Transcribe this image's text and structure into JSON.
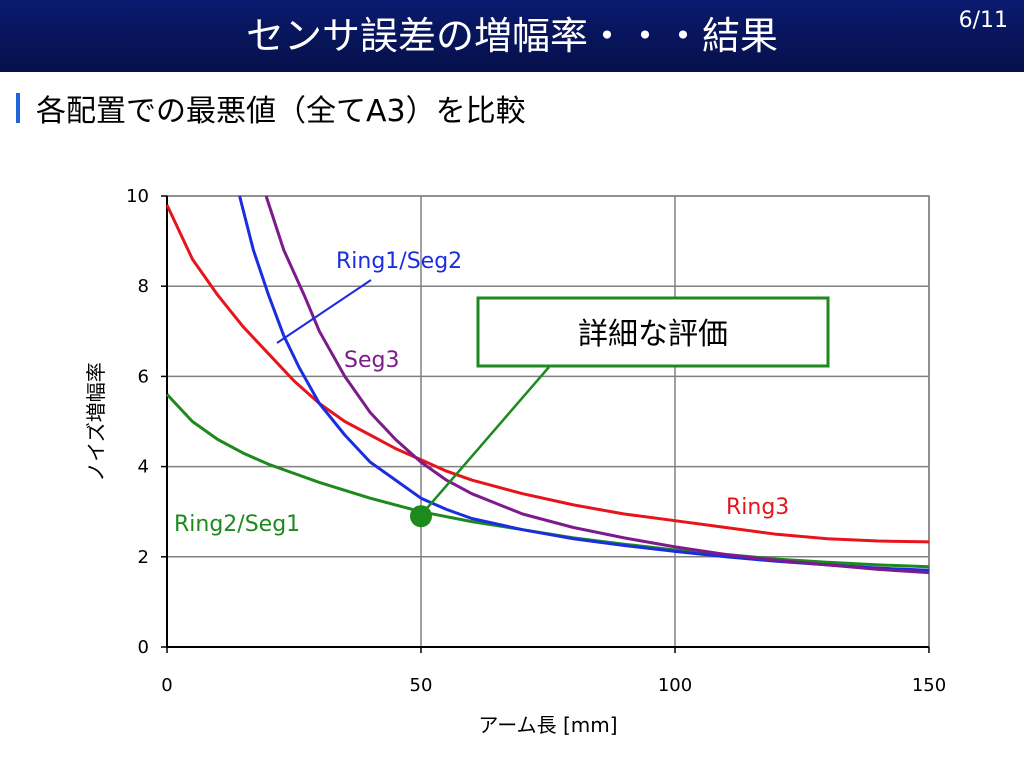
{
  "slide": {
    "title": "センサ誤差の増幅率・・・結果",
    "page": "6/11",
    "subtitle": "各配置での最悪値（全てA3）を比較"
  },
  "chart_data": {
    "type": "line",
    "xlabel": "アーム長 [mm]",
    "ylabel": "ノイズ増幅率",
    "xlim": [
      0,
      150
    ],
    "ylim": [
      0,
      10
    ],
    "xticks": [
      0,
      50,
      100,
      150
    ],
    "yticks": [
      0,
      2,
      4,
      6,
      8,
      10
    ],
    "grid": true,
    "series": [
      {
        "name": "Ring3",
        "color": "#e8141b",
        "x": [
          0,
          5,
          10,
          15,
          20,
          25,
          30,
          35,
          40,
          45,
          50,
          55,
          60,
          70,
          80,
          90,
          100,
          110,
          120,
          130,
          140,
          150
        ],
        "y": [
          9.8,
          8.6,
          7.8,
          7.1,
          6.5,
          5.9,
          5.4,
          5.0,
          4.7,
          4.4,
          4.15,
          3.9,
          3.7,
          3.4,
          3.15,
          2.95,
          2.8,
          2.65,
          2.5,
          2.4,
          2.35,
          2.33
        ]
      },
      {
        "name": "Ring2/Seg1",
        "color": "#1e8a1e",
        "x": [
          0,
          5,
          10,
          15,
          20,
          25,
          30,
          40,
          50,
          60,
          70,
          80,
          90,
          100,
          110,
          120,
          130,
          140,
          150
        ],
        "y": [
          5.6,
          5.0,
          4.6,
          4.3,
          4.05,
          3.85,
          3.65,
          3.3,
          3.0,
          2.78,
          2.6,
          2.42,
          2.28,
          2.15,
          2.05,
          1.95,
          1.88,
          1.82,
          1.78
        ]
      },
      {
        "name": "Ring1/Seg2",
        "color": "#1a2ee0",
        "x": [
          14.3,
          17,
          20,
          23,
          26,
          30,
          35,
          40,
          45,
          50,
          55,
          60,
          70,
          80,
          90,
          100,
          110,
          120,
          130,
          140,
          150
        ],
        "y": [
          10.0,
          8.8,
          7.8,
          6.9,
          6.2,
          5.4,
          4.7,
          4.1,
          3.7,
          3.3,
          3.05,
          2.85,
          2.6,
          2.4,
          2.25,
          2.12,
          2.0,
          1.9,
          1.82,
          1.75,
          1.7
        ]
      },
      {
        "name": "Seg3",
        "color": "#7d1a8c",
        "x": [
          19.5,
          23,
          27,
          30,
          35,
          40,
          45,
          50,
          55,
          60,
          70,
          80,
          90,
          100,
          110,
          120,
          130,
          140,
          150
        ],
        "y": [
          10.0,
          8.8,
          7.8,
          7.0,
          6.0,
          5.2,
          4.6,
          4.1,
          3.7,
          3.4,
          2.95,
          2.65,
          2.42,
          2.22,
          2.05,
          1.92,
          1.82,
          1.72,
          1.65
        ]
      }
    ],
    "annotations": {
      "callout_text": "詳細な評価",
      "marker": {
        "x": 50,
        "y": 2.9,
        "color": "#1e8a1e"
      }
    }
  }
}
